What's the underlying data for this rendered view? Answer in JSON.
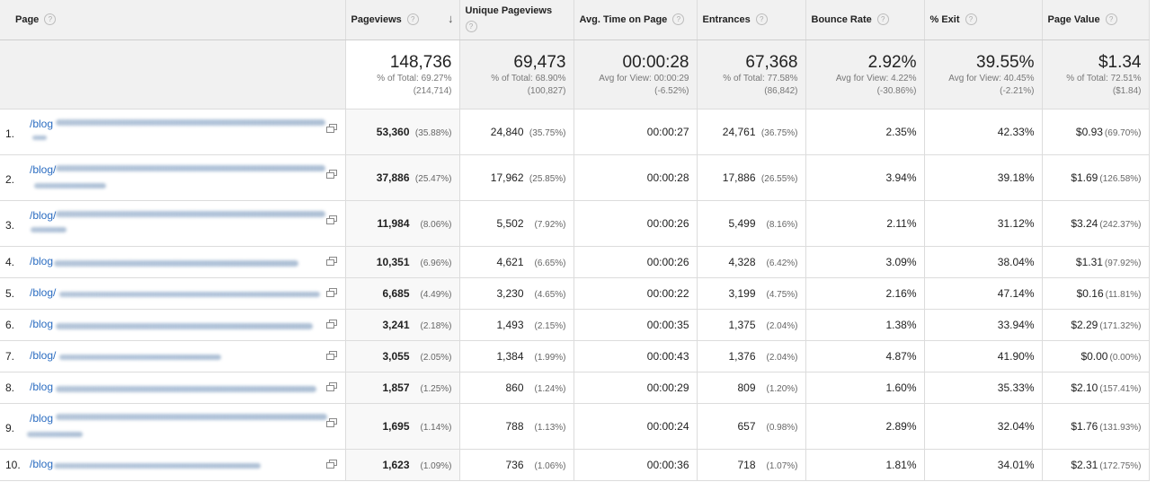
{
  "columns": [
    {
      "label": "Page"
    },
    {
      "label": "Pageviews"
    },
    {
      "label": "Unique Pageviews"
    },
    {
      "label": "Avg. Time on Page"
    },
    {
      "label": "Entrances"
    },
    {
      "label": "Bounce Rate"
    },
    {
      "label": "% Exit"
    },
    {
      "label": "Page Value"
    }
  ],
  "totals": [
    {
      "value": "148,736",
      "sub1": "% of Total: 69.27%",
      "sub2": "(214,714)"
    },
    {
      "value": "69,473",
      "sub1": "% of Total: 68.90%",
      "sub2": "(100,827)"
    },
    {
      "value": "00:00:28",
      "sub1": "Avg for View: 00:00:29",
      "sub2": "(-6.52%)"
    },
    {
      "value": "67,368",
      "sub1": "% of Total: 77.58%",
      "sub2": "(86,842)"
    },
    {
      "value": "2.92%",
      "sub1": "Avg for View: 4.22%",
      "sub2": "(-30.86%)"
    },
    {
      "value": "39.55%",
      "sub1": "Avg for View: 40.45%",
      "sub2": "(-2.21%)"
    },
    {
      "value": "$1.34",
      "sub1": "% of Total: 72.51%",
      "sub2": "($1.84)"
    }
  ],
  "rows": [
    {
      "num": "1.",
      "page": "/blog",
      "pv": "53,360",
      "pv_pct": "(35.88%)",
      "upv": "24,840",
      "upv_pct": "(35.75%)",
      "time": "00:00:27",
      "ent": "24,761",
      "ent_pct": "(36.75%)",
      "br": "2.35%",
      "exit": "42.33%",
      "val": "$0.93",
      "val_pct": "(69.70%)"
    },
    {
      "num": "2.",
      "page": "/blog/",
      "pv": "37,886",
      "pv_pct": "(25.47%)",
      "upv": "17,962",
      "upv_pct": "(25.85%)",
      "time": "00:00:28",
      "ent": "17,886",
      "ent_pct": "(26.55%)",
      "br": "3.94%",
      "exit": "39.18%",
      "val": "$1.69",
      "val_pct": "(126.58%)"
    },
    {
      "num": "3.",
      "page": "/blog/",
      "pv": "11,984",
      "pv_pct": "(8.06%)",
      "upv": "5,502",
      "upv_pct": "(7.92%)",
      "time": "00:00:26",
      "ent": "5,499",
      "ent_pct": "(8.16%)",
      "br": "2.11%",
      "exit": "31.12%",
      "val": "$3.24",
      "val_pct": "(242.37%)"
    },
    {
      "num": "4.",
      "page": "/blog",
      "pv": "10,351",
      "pv_pct": "(6.96%)",
      "upv": "4,621",
      "upv_pct": "(6.65%)",
      "time": "00:00:26",
      "ent": "4,328",
      "ent_pct": "(6.42%)",
      "br": "3.09%",
      "exit": "38.04%",
      "val": "$1.31",
      "val_pct": "(97.92%)"
    },
    {
      "num": "5.",
      "page": "/blog/",
      "pv": "6,685",
      "pv_pct": "(4.49%)",
      "upv": "3,230",
      "upv_pct": "(4.65%)",
      "time": "00:00:22",
      "ent": "3,199",
      "ent_pct": "(4.75%)",
      "br": "2.16%",
      "exit": "47.14%",
      "val": "$0.16",
      "val_pct": "(11.81%)"
    },
    {
      "num": "6.",
      "page": "/blog",
      "pv": "3,241",
      "pv_pct": "(2.18%)",
      "upv": "1,493",
      "upv_pct": "(2.15%)",
      "time": "00:00:35",
      "ent": "1,375",
      "ent_pct": "(2.04%)",
      "br": "1.38%",
      "exit": "33.94%",
      "val": "$2.29",
      "val_pct": "(171.32%)"
    },
    {
      "num": "7.",
      "page": "/blog/",
      "pv": "3,055",
      "pv_pct": "(2.05%)",
      "upv": "1,384",
      "upv_pct": "(1.99%)",
      "time": "00:00:43",
      "ent": "1,376",
      "ent_pct": "(2.04%)",
      "br": "4.87%",
      "exit": "41.90%",
      "val": "$0.00",
      "val_pct": "(0.00%)"
    },
    {
      "num": "8.",
      "page": "/blog",
      "pv": "1,857",
      "pv_pct": "(1.25%)",
      "upv": "860",
      "upv_pct": "(1.24%)",
      "time": "00:00:29",
      "ent": "809",
      "ent_pct": "(1.20%)",
      "br": "1.60%",
      "exit": "35.33%",
      "val": "$2.10",
      "val_pct": "(157.41%)"
    },
    {
      "num": "9.",
      "page": "/blog",
      "pv": "1,695",
      "pv_pct": "(1.14%)",
      "upv": "788",
      "upv_pct": "(1.13%)",
      "time": "00:00:24",
      "ent": "657",
      "ent_pct": "(0.98%)",
      "br": "2.89%",
      "exit": "32.04%",
      "val": "$1.76",
      "val_pct": "(131.93%)"
    },
    {
      "num": "10.",
      "page": "/blog",
      "pv": "1,623",
      "pv_pct": "(1.09%)",
      "upv": "736",
      "upv_pct": "(1.06%)",
      "time": "00:00:36",
      "ent": "718",
      "ent_pct": "(1.07%)",
      "br": "1.81%",
      "exit": "34.01%",
      "val": "$2.31",
      "val_pct": "(172.75%)"
    }
  ],
  "icons": {
    "help": "help-circle-icon",
    "sort": "sort-descending-arrow-icon",
    "external": "open-in-new-window-icon"
  }
}
